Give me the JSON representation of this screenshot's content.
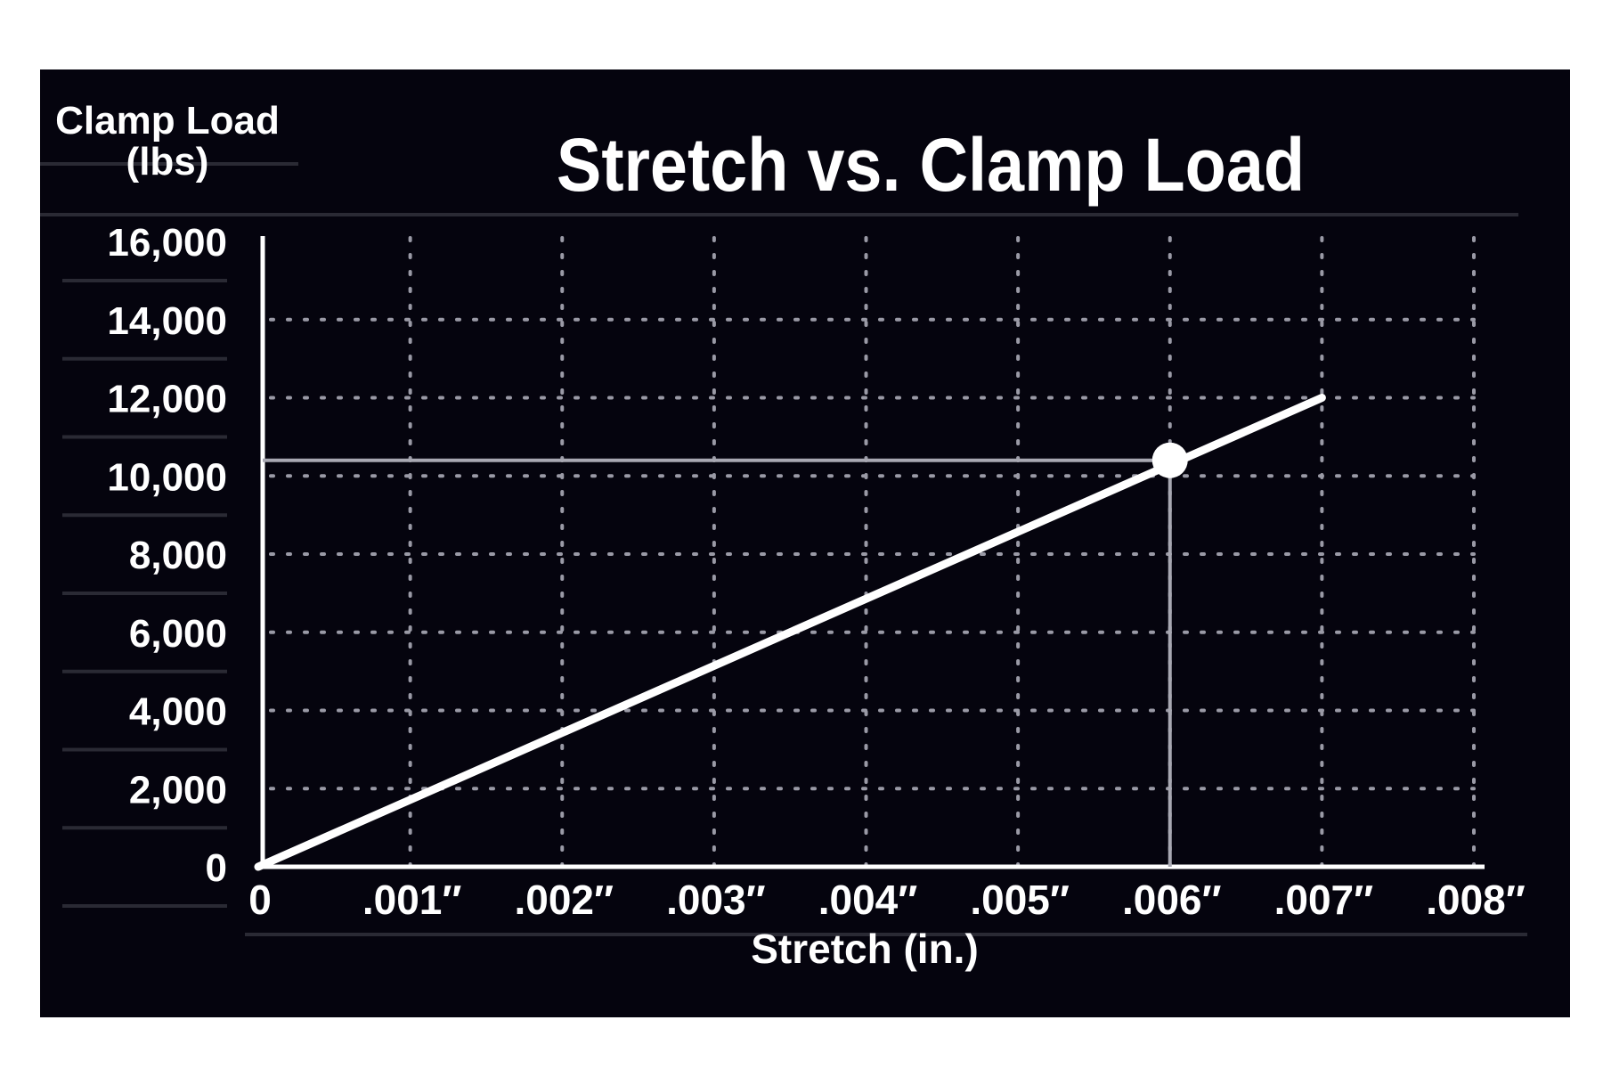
{
  "colors": {
    "background": "#05040e",
    "page": "#ffffff",
    "line": "#ffffff",
    "grid": "#9a9aa6",
    "reference_line": "#a8a8b2"
  },
  "chart_data": {
    "type": "line",
    "title": "Stretch vs. Clamp Load",
    "ylabel_lines": [
      "Clamp Load",
      "(lbs)"
    ],
    "xlabel": "Stretch (in.)",
    "xlim": [
      0,
      0.008
    ],
    "ylim": [
      0,
      16000
    ],
    "x_ticks": [
      0,
      0.001,
      0.002,
      0.003,
      0.004,
      0.005,
      0.006,
      0.007,
      0.008
    ],
    "x_tick_labels": [
      "0",
      ".001″",
      ".002″",
      ".003″",
      ".004″",
      ".005″",
      ".006″",
      ".007″",
      ".008″"
    ],
    "y_ticks": [
      0,
      2000,
      4000,
      6000,
      8000,
      10000,
      12000,
      14000,
      16000
    ],
    "y_tick_labels": [
      "0",
      "2,000",
      "4,000",
      "6,000",
      "8,000",
      "10,000",
      "12,000",
      "14,000",
      "16,000"
    ],
    "grid": true,
    "grid_style": "dotted",
    "series": [
      {
        "x": [
          0,
          0.007
        ],
        "y": [
          0,
          12000
        ]
      }
    ],
    "highlight_point": {
      "x": 0.006,
      "y": 10400
    }
  }
}
